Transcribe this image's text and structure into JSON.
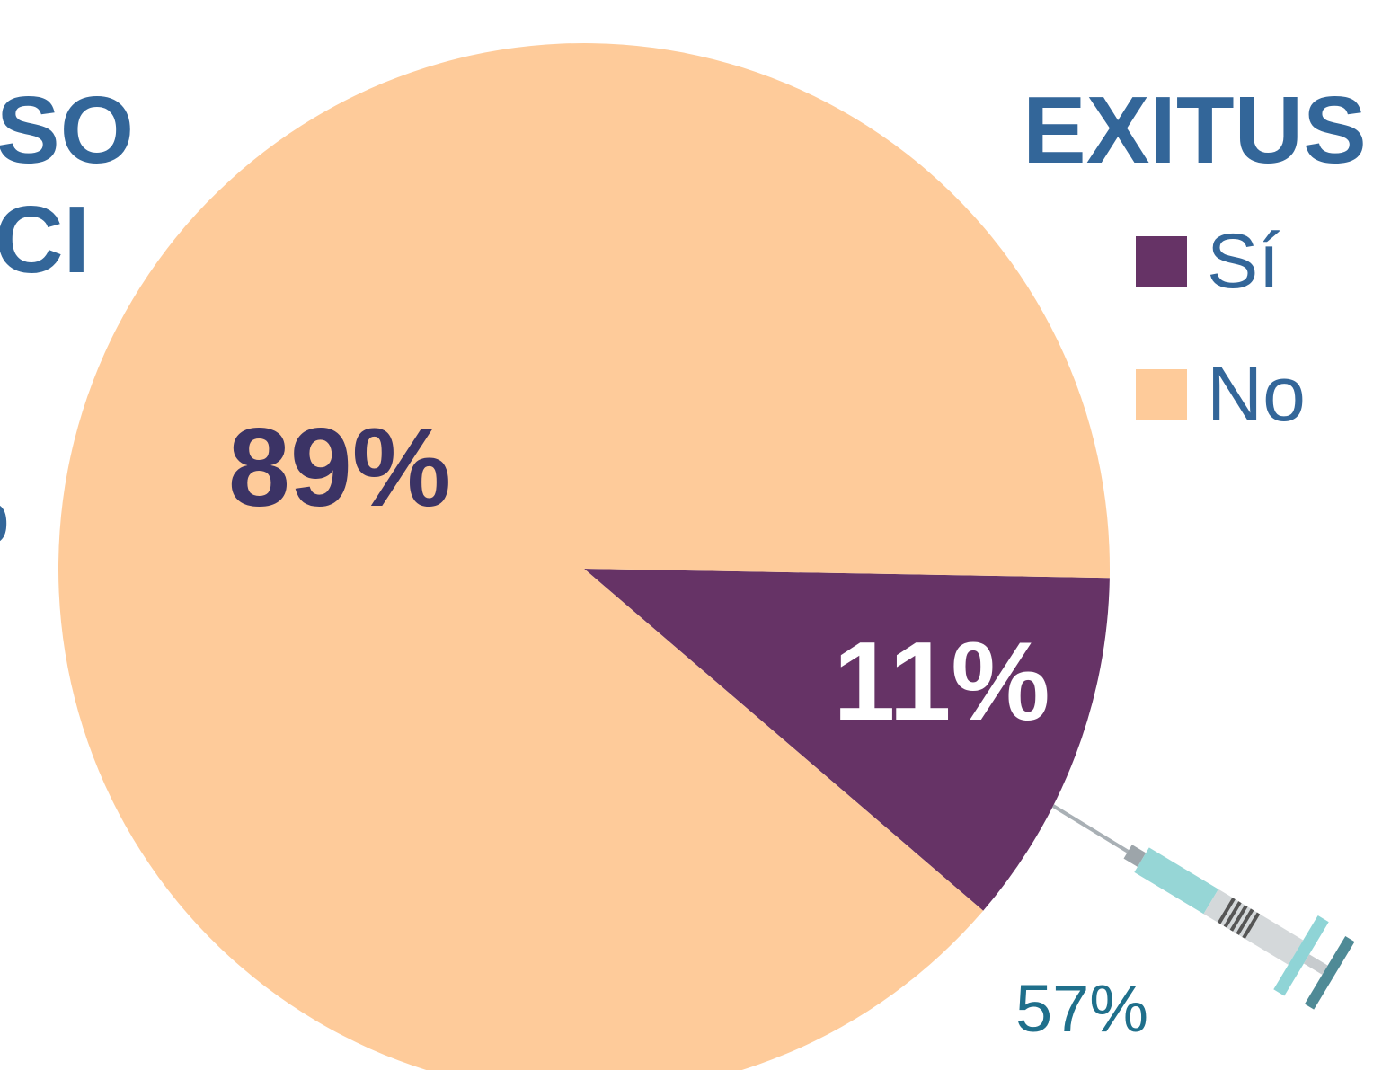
{
  "fragments": {
    "left_top": "SO",
    "left_mid": "CI",
    "left_low": "o"
  },
  "extra_label": "57%",
  "chart_data": {
    "type": "pie",
    "title": "EXITUS",
    "slices": [
      {
        "label": "No",
        "value": 89,
        "display": "89%",
        "color": "#FECB9A",
        "label_color": "#3B3365"
      },
      {
        "label": "Sí",
        "value": 11,
        "display": "11%",
        "color": "#663366",
        "label_color": "#FFFFFF"
      }
    ],
    "legend": {
      "position": "right",
      "items": [
        {
          "label": "Sí",
          "color": "#663366"
        },
        {
          "label": "No",
          "color": "#FECB9A"
        }
      ]
    }
  },
  "icons": {
    "syringe": "syringe-icon"
  }
}
